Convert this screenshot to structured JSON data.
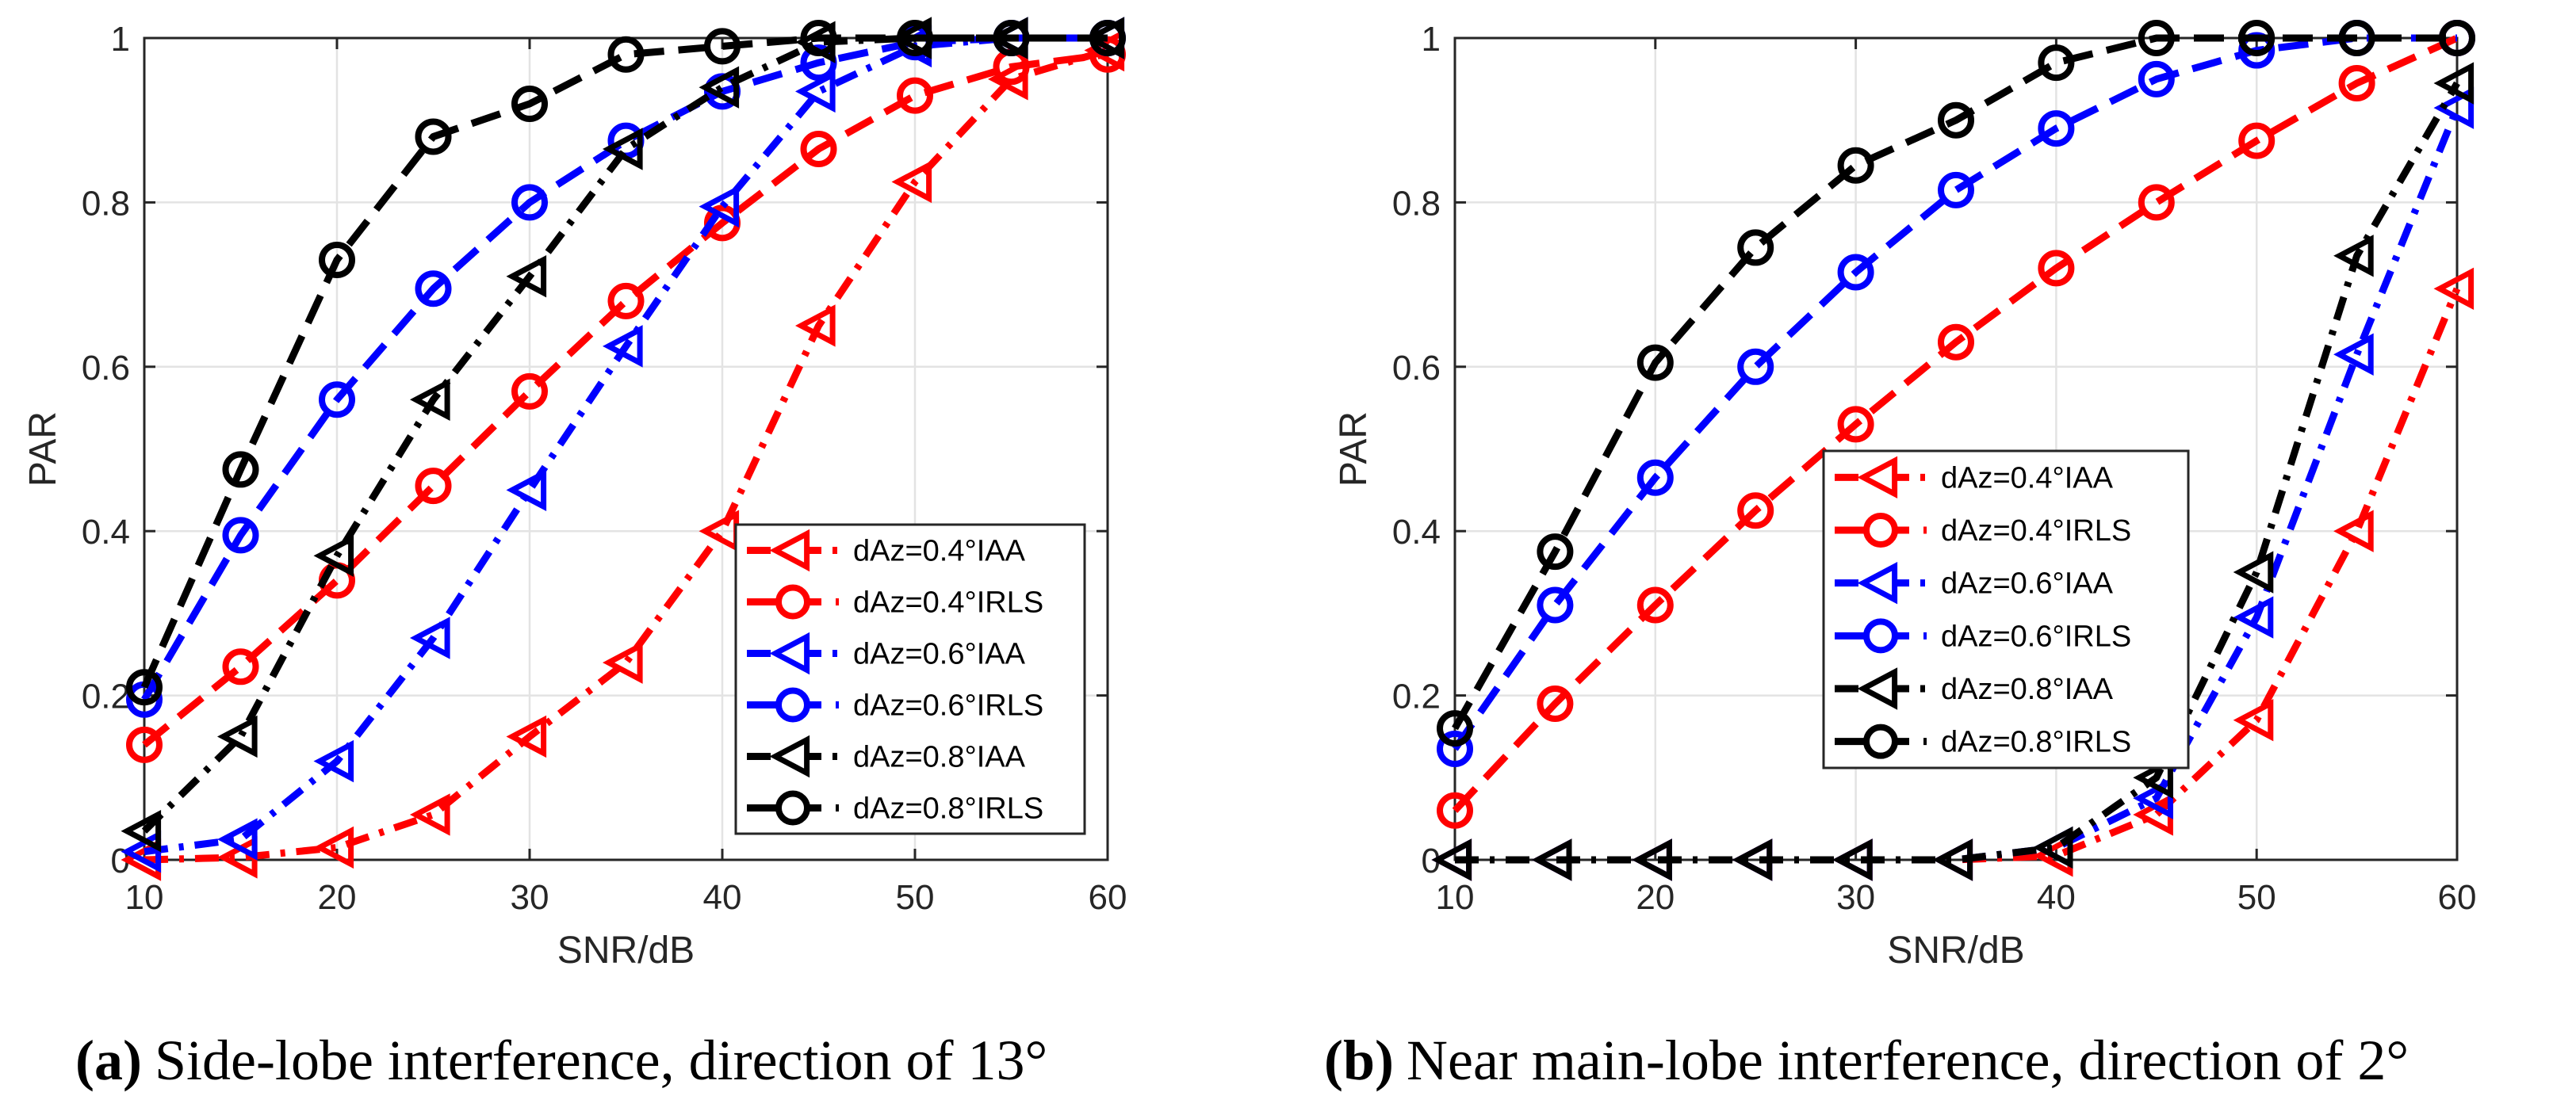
{
  "chart_data": [
    {
      "type": "line",
      "title": "",
      "xlabel": "SNR/dB",
      "ylabel": "PAR",
      "xlim": [
        10,
        60
      ],
      "ylim": [
        0,
        1
      ],
      "grid": true,
      "legend_position": "lower-right",
      "xticks": [
        "10",
        "20",
        "30",
        "40",
        "50",
        "60"
      ],
      "yticks": [
        "0",
        "0.2",
        "0.4",
        "0.6",
        "0.8",
        "1"
      ],
      "x": [
        10,
        15,
        20,
        25,
        30,
        35,
        40,
        45,
        50,
        55,
        60
      ],
      "caption_label": "(a)",
      "caption_text": "Side-lobe interference, direction of 13°",
      "series": [
        {
          "name": "dAz=0.4°IAA",
          "color": "#ff0000",
          "marker": "triangle-left",
          "linestyle": "dashdot",
          "values": [
            0.0,
            0.003,
            0.015,
            0.055,
            0.15,
            0.24,
            0.4,
            0.65,
            0.825,
            0.95,
            0.985
          ]
        },
        {
          "name": "dAz=0.4°IRLS",
          "color": "#ff0000",
          "marker": "circle",
          "linestyle": "dashed",
          "values": [
            0.14,
            0.235,
            0.34,
            0.455,
            0.57,
            0.68,
            0.775,
            0.865,
            0.93,
            0.965,
            0.98
          ]
        },
        {
          "name": "dAz=0.6°IAA",
          "color": "#0000ff",
          "marker": "triangle-left",
          "linestyle": "dashdot",
          "values": [
            0.01,
            0.025,
            0.12,
            0.27,
            0.45,
            0.625,
            0.795,
            0.935,
            0.99,
            1.0,
            1.0
          ]
        },
        {
          "name": "dAz=0.6°IRLS",
          "color": "#0000ff",
          "marker": "circle",
          "linestyle": "dashed",
          "values": [
            0.195,
            0.395,
            0.56,
            0.695,
            0.8,
            0.875,
            0.935,
            0.97,
            0.995,
            1.0,
            1.0
          ]
        },
        {
          "name": "dAz=0.8°IAA",
          "color": "#000000",
          "marker": "triangle-left",
          "linestyle": "dashdot",
          "values": [
            0.035,
            0.15,
            0.37,
            0.56,
            0.71,
            0.865,
            0.94,
            0.995,
            1.0,
            1.0,
            1.0
          ]
        },
        {
          "name": "dAz=0.8°IRLS",
          "color": "#000000",
          "marker": "circle",
          "linestyle": "dashed",
          "values": [
            0.21,
            0.475,
            0.73,
            0.88,
            0.92,
            0.98,
            0.99,
            1.0,
            1.0,
            1.0,
            1.0
          ]
        }
      ]
    },
    {
      "type": "line",
      "title": "",
      "xlabel": "SNR/dB",
      "ylabel": "PAR",
      "xlim": [
        10,
        60
      ],
      "ylim": [
        0,
        1
      ],
      "grid": true,
      "legend_position": "center",
      "xticks": [
        "10",
        "20",
        "30",
        "40",
        "50",
        "60"
      ],
      "yticks": [
        "0",
        "0.2",
        "0.4",
        "0.6",
        "0.8",
        "1"
      ],
      "x": [
        10,
        15,
        20,
        25,
        30,
        35,
        40,
        45,
        50,
        55,
        60
      ],
      "caption_label": "(b)",
      "caption_text": "Near main-lobe interference, direction of 2°",
      "series": [
        {
          "name": "dAz=0.4°IAA",
          "color": "#ff0000",
          "marker": "triangle-left",
          "linestyle": "dashdot",
          "values": [
            0.0,
            0.0,
            0.0,
            0.0,
            0.0,
            0.0,
            0.005,
            0.055,
            0.17,
            0.4,
            0.695
          ]
        },
        {
          "name": "dAz=0.4°IRLS",
          "color": "#ff0000",
          "marker": "circle",
          "linestyle": "dashed",
          "values": [
            0.06,
            0.19,
            0.31,
            0.425,
            0.53,
            0.63,
            0.72,
            0.8,
            0.875,
            0.945,
            1.0
          ]
        },
        {
          "name": "dAz=0.6°IAA",
          "color": "#0000ff",
          "marker": "triangle-left",
          "linestyle": "dashdot",
          "values": [
            0.0,
            0.0,
            0.0,
            0.0,
            0.0,
            0.0,
            0.015,
            0.075,
            0.295,
            0.615,
            0.915
          ]
        },
        {
          "name": "dAz=0.6°IRLS",
          "color": "#0000ff",
          "marker": "circle",
          "linestyle": "dashed",
          "values": [
            0.135,
            0.31,
            0.465,
            0.6,
            0.715,
            0.815,
            0.89,
            0.95,
            0.985,
            1.0,
            1.0
          ]
        },
        {
          "name": "dAz=0.8°IAA",
          "color": "#000000",
          "marker": "triangle-left",
          "linestyle": "dashdot",
          "values": [
            0.0,
            0.0,
            0.0,
            0.0,
            0.0,
            0.0,
            0.015,
            0.1,
            0.35,
            0.735,
            0.945
          ]
        },
        {
          "name": "dAz=0.8°IRLS",
          "color": "#000000",
          "marker": "circle",
          "linestyle": "dashed",
          "values": [
            0.16,
            0.375,
            0.605,
            0.745,
            0.845,
            0.9,
            0.97,
            1.0,
            1.0,
            1.0,
            1.0
          ]
        }
      ]
    }
  ]
}
